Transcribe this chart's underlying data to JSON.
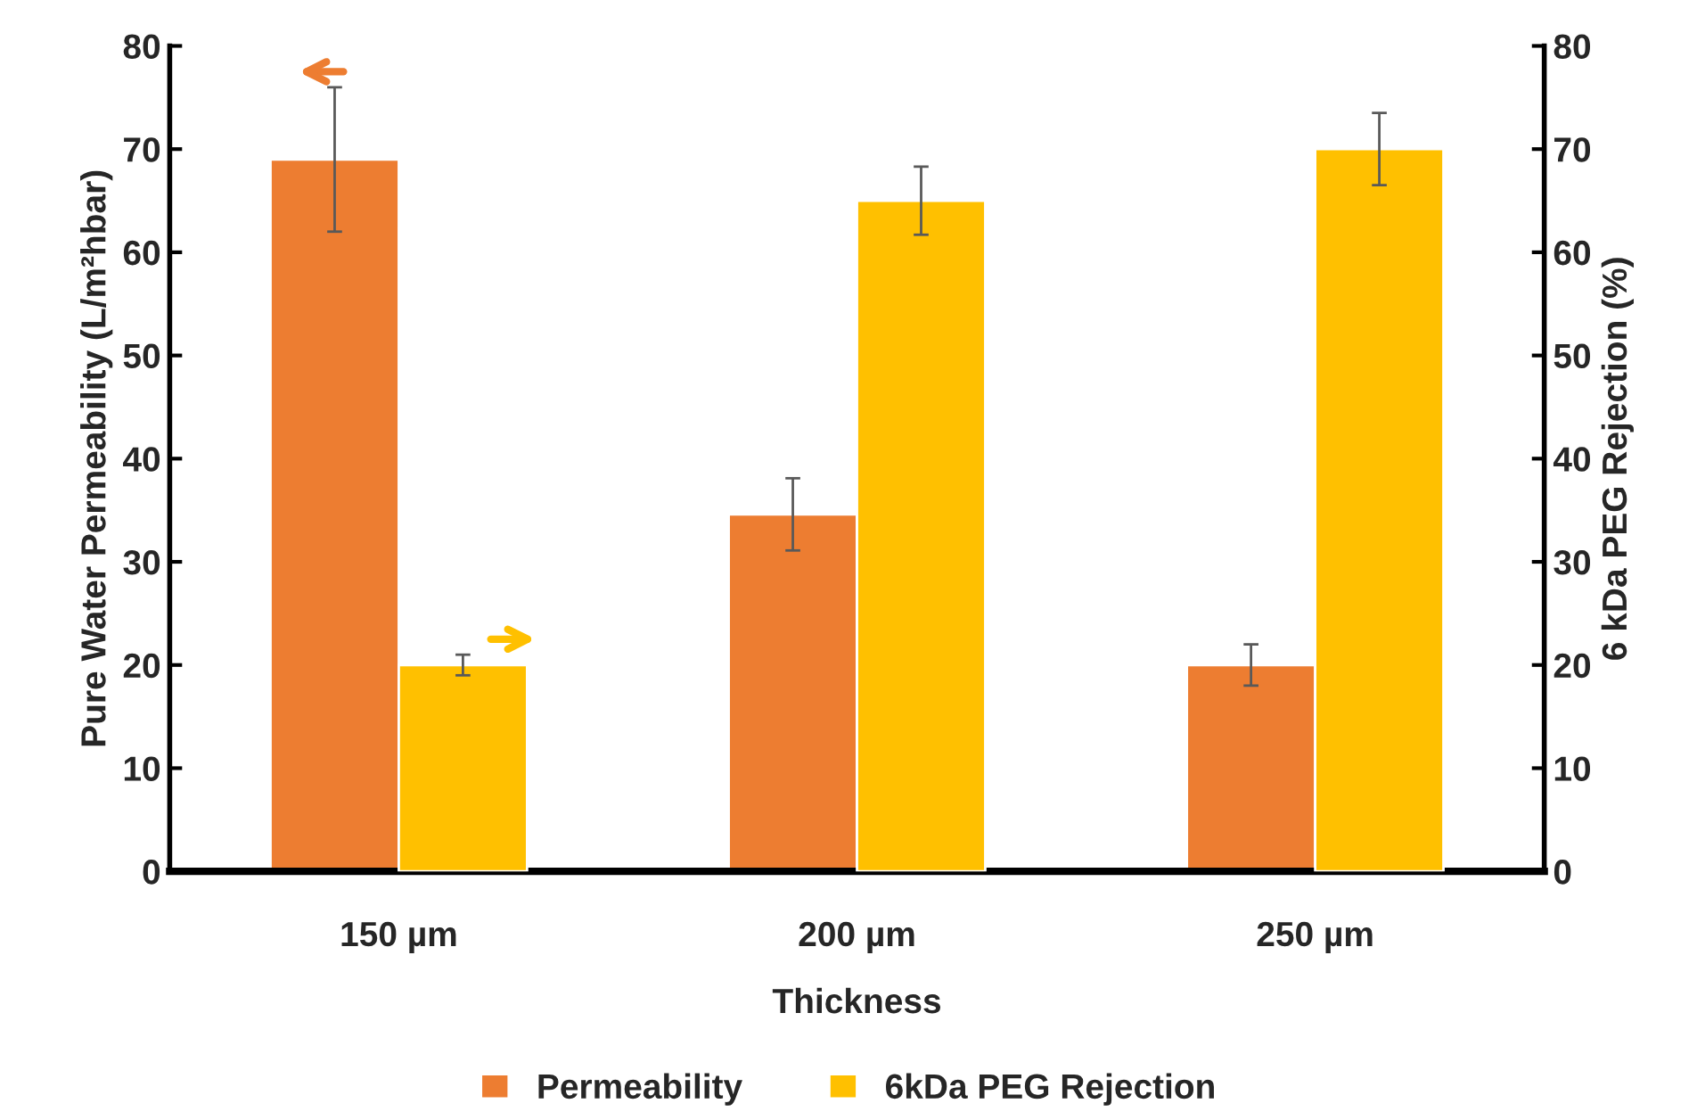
{
  "chart_data": {
    "type": "bar",
    "xlabel": "Thickness",
    "ylabel": "Pure Water Permeability (L/m²hbar)",
    "y2label": "6 kDa PEG Rejection (%)",
    "categories": [
      "150 µm",
      "200 µm",
      "250 µm"
    ],
    "series": [
      {
        "name": "Permeability",
        "color": "#ed7d31",
        "values": [
          69,
          34.6,
          20
        ],
        "errors": [
          7,
          3.5,
          2
        ]
      },
      {
        "name": "6kDa PEG Rejection",
        "color": "#ffc000",
        "values": [
          20,
          65,
          70
        ],
        "errors": [
          1,
          3.3,
          3.5
        ],
        "axis": "y2"
      }
    ],
    "ylim": [
      0,
      80
    ],
    "yticks": [
      0,
      10,
      20,
      30,
      40,
      50,
      60,
      70,
      80
    ],
    "y2lim": [
      0,
      80
    ],
    "y2ticks": [
      0,
      10,
      20,
      30,
      40,
      50,
      60,
      70,
      80
    ],
    "grid": false,
    "legend": "bottom"
  }
}
